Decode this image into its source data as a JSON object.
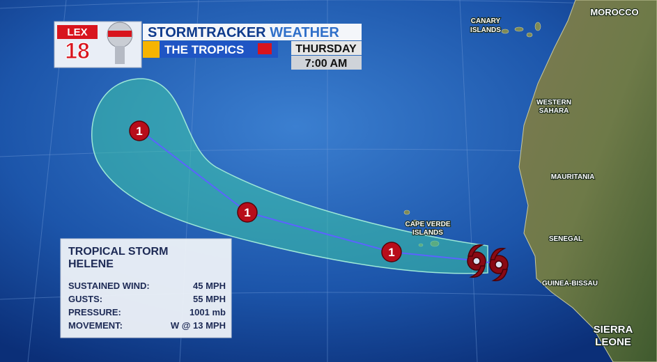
{
  "header": {
    "logo": {
      "station": "LEX",
      "channel": "18"
    },
    "title": {
      "brand": "STORMTRACKER",
      "word": "WEATHER"
    },
    "subtitle": "THE TROPICS",
    "day": "THURSDAY",
    "time": "7:00 AM"
  },
  "map_labels": {
    "canary": [
      "CANARY",
      "ISLANDS"
    ],
    "morocco": "MOROCCO",
    "western_sahara": [
      "WESTERN",
      "SAHARA"
    ],
    "mauritania": "MAURITANIA",
    "senegal": "SENEGAL",
    "guinea_bissau": "GUINEA-BISSAU",
    "sierra_leone": [
      "SIERRA",
      "LEONE"
    ],
    "cape_verde": [
      "CAPE VERDE",
      "ISLANDS"
    ]
  },
  "storm_markers": [
    "1",
    "1",
    "1"
  ],
  "info_box": {
    "title": [
      "TROPICAL STORM",
      "HELENE"
    ],
    "rows": [
      [
        "SUSTAINED WIND:",
        "45 MPH"
      ],
      [
        "GUSTS:",
        "55 MPH"
      ],
      [
        "PRESSURE:",
        "1001 mb"
      ],
      [
        "MOVEMENT:",
        "W @ 13 MPH"
      ]
    ]
  }
}
